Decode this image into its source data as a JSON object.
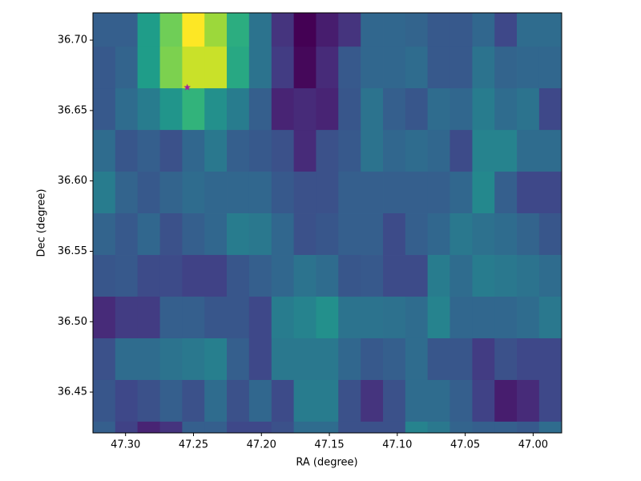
{
  "chart_data": {
    "type": "heatmap",
    "colormap": "viridis",
    "xlabel": "RA (degree)",
    "ylabel": "Dec (degree)",
    "xlim": [
      47.324,
      46.979
    ],
    "ylim": [
      36.421,
      36.7194
    ],
    "xedges": [
      47.324,
      47.3076,
      47.2912,
      47.2747,
      47.2583,
      47.2419,
      47.2255,
      47.2091,
      47.1926,
      47.1762,
      47.1598,
      47.1434,
      47.1269,
      47.1105,
      47.0941,
      47.0777,
      47.0613,
      47.0448,
      47.0284,
      47.012,
      46.9956,
      46.979
    ],
    "yedges": [
      36.7194,
      36.6954,
      36.6658,
      36.6362,
      36.6066,
      36.577,
      36.5474,
      36.5178,
      36.4882,
      36.4586,
      36.429,
      36.421
    ],
    "values": [
      [
        0.3,
        0.3,
        0.55,
        0.78,
        1.0,
        0.85,
        0.62,
        0.38,
        0.15,
        0.0,
        0.08,
        0.15,
        0.33,
        0.33,
        0.32,
        0.28,
        0.28,
        0.33,
        0.22,
        0.35,
        0.35
      ],
      [
        0.28,
        0.32,
        0.55,
        0.8,
        0.92,
        0.92,
        0.6,
        0.38,
        0.18,
        0.02,
        0.12,
        0.28,
        0.33,
        0.33,
        0.35,
        0.28,
        0.28,
        0.38,
        0.32,
        0.33,
        0.33
      ],
      [
        0.28,
        0.35,
        0.42,
        0.52,
        0.65,
        0.5,
        0.42,
        0.3,
        0.1,
        0.12,
        0.1,
        0.27,
        0.38,
        0.3,
        0.27,
        0.35,
        0.33,
        0.42,
        0.35,
        0.38,
        0.22
      ],
      [
        0.35,
        0.27,
        0.3,
        0.25,
        0.33,
        0.4,
        0.3,
        0.28,
        0.25,
        0.12,
        0.25,
        0.28,
        0.38,
        0.33,
        0.35,
        0.33,
        0.23,
        0.45,
        0.45,
        0.35,
        0.35
      ],
      [
        0.42,
        0.32,
        0.28,
        0.32,
        0.35,
        0.33,
        0.33,
        0.33,
        0.28,
        0.25,
        0.25,
        0.3,
        0.3,
        0.3,
        0.3,
        0.3,
        0.33,
        0.47,
        0.3,
        0.22,
        0.22
      ],
      [
        0.32,
        0.28,
        0.33,
        0.25,
        0.3,
        0.33,
        0.42,
        0.4,
        0.33,
        0.25,
        0.27,
        0.3,
        0.3,
        0.23,
        0.3,
        0.33,
        0.4,
        0.37,
        0.35,
        0.32,
        0.27
      ],
      [
        0.27,
        0.28,
        0.23,
        0.23,
        0.2,
        0.2,
        0.27,
        0.3,
        0.33,
        0.38,
        0.35,
        0.27,
        0.28,
        0.23,
        0.23,
        0.42,
        0.35,
        0.42,
        0.4,
        0.38,
        0.35
      ],
      [
        0.12,
        0.18,
        0.18,
        0.3,
        0.3,
        0.27,
        0.27,
        0.22,
        0.42,
        0.45,
        0.5,
        0.38,
        0.38,
        0.37,
        0.35,
        0.45,
        0.33,
        0.33,
        0.33,
        0.35,
        0.4
      ],
      [
        0.25,
        0.35,
        0.35,
        0.38,
        0.4,
        0.43,
        0.3,
        0.22,
        0.4,
        0.4,
        0.4,
        0.33,
        0.28,
        0.3,
        0.35,
        0.27,
        0.27,
        0.18,
        0.25,
        0.22,
        0.22
      ],
      [
        0.27,
        0.22,
        0.25,
        0.3,
        0.25,
        0.35,
        0.25,
        0.33,
        0.23,
        0.42,
        0.42,
        0.25,
        0.15,
        0.25,
        0.35,
        0.35,
        0.3,
        0.2,
        0.08,
        0.12,
        0.22
      ],
      [
        0.3,
        0.2,
        0.1,
        0.15,
        0.3,
        0.3,
        0.22,
        0.22,
        0.25,
        0.35,
        0.35,
        0.25,
        0.25,
        0.25,
        0.45,
        0.4,
        0.32,
        0.3,
        0.3,
        0.28,
        0.35
      ]
    ],
    "marker": {
      "x": 47.2546,
      "y": 36.6664,
      "color": "#a0209f"
    },
    "xticks": [
      {
        "value": 47.3,
        "label": "47.30"
      },
      {
        "value": 47.25,
        "label": "47.25"
      },
      {
        "value": 47.2,
        "label": "47.20"
      },
      {
        "value": 47.15,
        "label": "47.15"
      },
      {
        "value": 47.1,
        "label": "47.10"
      },
      {
        "value": 47.05,
        "label": "47.05"
      },
      {
        "value": 47.0,
        "label": "47.00"
      }
    ],
    "yticks": [
      36.45,
      {
        "value": 36.5,
        "label": "36.50"
      },
      36.55,
      {
        "value": 36.6,
        "label": "36.60"
      },
      36.65,
      {
        "value": 36.7,
        "label": "36.70"
      }
    ]
  }
}
